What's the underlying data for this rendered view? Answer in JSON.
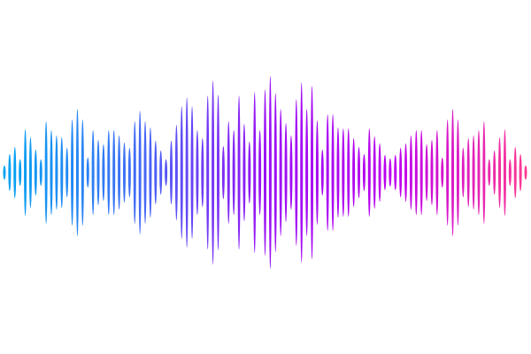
{
  "waveform": {
    "description_type": "audio-waveform",
    "gradient_colors": [
      "#00a6f2",
      "#3f6ef5",
      "#9a10f5",
      "#c000ee",
      "#ff3b8e"
    ],
    "background": "#ffffff",
    "amplitudes": [
      8,
      21,
      29,
      15,
      49,
      40,
      26,
      15,
      58,
      48,
      42,
      40,
      28,
      60,
      72,
      60,
      17,
      48,
      37,
      32,
      48,
      48,
      42,
      34,
      28,
      58,
      70,
      58,
      51,
      36,
      25,
      15,
      36,
      54,
      75,
      85,
      75,
      48,
      39,
      87,
      104,
      88,
      30,
      58,
      48,
      87,
      55,
      35,
      91,
      48,
      94,
      109,
      90,
      72,
      56,
      42,
      83,
      102,
      72,
      98,
      59,
      26,
      66,
      66,
      51,
      50,
      50,
      39,
      29,
      21,
      50,
      41,
      33,
      20,
      16,
      20,
      28,
      33,
      42,
      48,
      48,
      32,
      37,
      48,
      17,
      60,
      72,
      60,
      28,
      39,
      42,
      48,
      58,
      15,
      25,
      40,
      49,
      15,
      29,
      21,
      8
    ],
    "amplitude_max": 109
  }
}
